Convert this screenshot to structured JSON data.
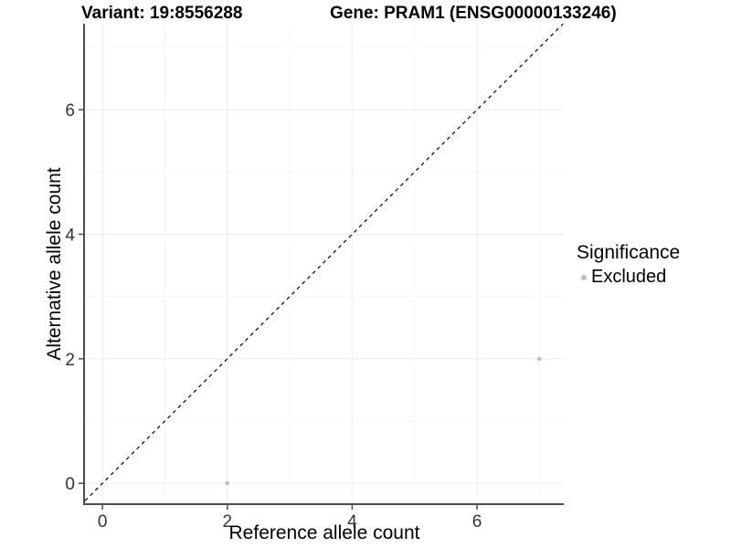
{
  "titles": {
    "variant": "Variant: 19:8556288",
    "gene": "Gene: PRAM1 (ENSG00000133246)"
  },
  "axes": {
    "xlabel": "Reference allele count",
    "ylabel": "Alternative allele count"
  },
  "legend": {
    "title": "Significance",
    "items": [
      {
        "label": "Excluded",
        "color": "#bfbfbf"
      }
    ]
  },
  "chart_data": {
    "type": "scatter",
    "title": "Variant: 19:8556288   |   Gene: PRAM1 (ENSG00000133246)",
    "xlabel": "Reference allele count",
    "ylabel": "Alternative allele count",
    "xlim": [
      -0.28,
      7.39
    ],
    "ylim": [
      -0.32,
      7.38
    ],
    "x_ticks": [
      0,
      2,
      4,
      6
    ],
    "y_ticks": [
      0,
      2,
      4,
      6
    ],
    "x_minor_ticks": [
      1,
      3,
      5,
      7
    ],
    "y_minor_ticks": [
      1,
      3,
      5,
      7
    ],
    "grid": true,
    "legend_position": "right",
    "series": [
      {
        "name": "Excluded",
        "color": "#bfbfbf",
        "point_radius": 2.3,
        "points": [
          {
            "x": 2,
            "y": 0
          },
          {
            "x": 7,
            "y": 2
          }
        ]
      }
    ],
    "reference_line": {
      "type": "identity y=x",
      "style": "dashed",
      "color": "#000000",
      "dash": [
        4,
        4
      ],
      "width": 1.2
    },
    "colors": {
      "background": "#ffffff",
      "axis_line": "#4d4d4d",
      "tick_mark": "#4d4d4d",
      "tick_text": "#333333",
      "grid_major": "#ebebeb",
      "grid_minor": "#f6f6f6"
    }
  }
}
